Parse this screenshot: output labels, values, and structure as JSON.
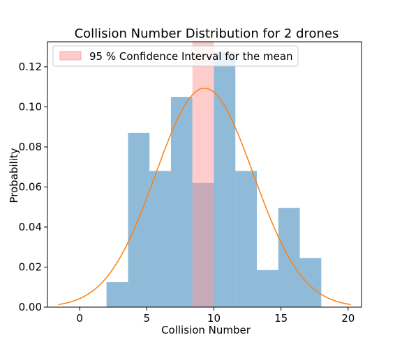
{
  "chart_data": {
    "type": "bar",
    "title": "Collision Number Distribution for 2 drones",
    "xlabel": "Collision Number",
    "ylabel": "Probability",
    "xlim": [
      -2.4,
      21.0
    ],
    "ylim": [
      0.0,
      0.1325
    ],
    "xticks": [
      0,
      5,
      10,
      15,
      20
    ],
    "yticks": [
      0.0,
      0.02,
      0.04,
      0.06,
      0.08,
      0.1,
      0.12
    ],
    "ytick_labels": [
      "0.00",
      "0.02",
      "0.04",
      "0.06",
      "0.08",
      "0.10",
      "0.12"
    ],
    "grid": false,
    "legend_placement": "top-left",
    "histogram": {
      "bin_edges": [
        2.0,
        3.6,
        5.2,
        6.8,
        8.4,
        10.0,
        11.6,
        13.2,
        14.8,
        16.4,
        18.0
      ],
      "values": [
        0.0125,
        0.087,
        0.068,
        0.105,
        0.062,
        0.1275,
        0.068,
        0.0185,
        0.0495,
        0.0245
      ],
      "color": "#1f77b4"
    },
    "normal_curve": {
      "mean": 9.3,
      "std": 3.65,
      "x_range": [
        -1.6,
        20.2
      ],
      "color": "#ff7f0e"
    },
    "confidence_interval": {
      "label": "95 % Confidence Interval for the mean",
      "x_range": [
        8.4,
        10.0
      ],
      "color": "#ff9a9a"
    }
  }
}
